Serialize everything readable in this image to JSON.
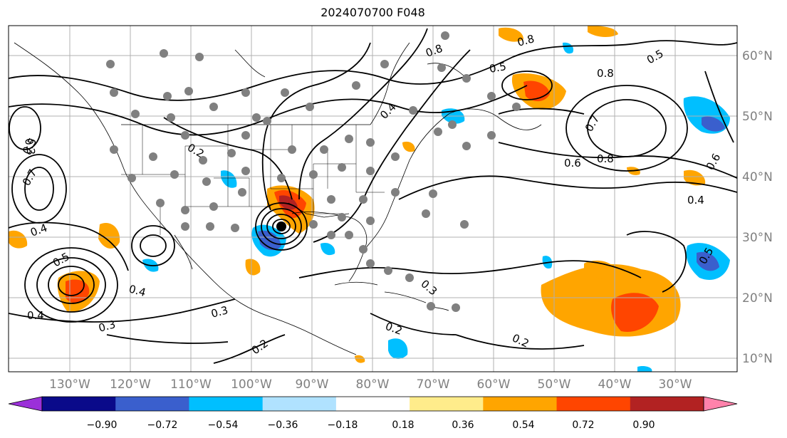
{
  "title": "2024070700 F048",
  "map": {
    "lat_labels": [
      "60°N",
      "50°N",
      "40°N",
      "30°N",
      "20°N",
      "10°N"
    ],
    "lon_labels": [
      "130°W",
      "120°W",
      "110°W",
      "100°W",
      "90°W",
      "80°W",
      "70°W",
      "60°W",
      "50°W",
      "40°W",
      "30°W"
    ],
    "contour_labels": [
      "0.8",
      "0.8",
      "0.5",
      "0.8",
      "0.5",
      "0.7",
      "0.8",
      "0.6",
      "0.4",
      "0.4",
      "0.3",
      "0.3",
      "0.2",
      "0.2",
      "0.2",
      "0.3",
      "0.5",
      "0.4",
      "0.7",
      "0.5",
      "0.4",
      "0.2",
      "0.3",
      "0.4",
      "0.5",
      "0.6"
    ]
  },
  "colorbar": {
    "ticks": [
      "−0.90",
      "−0.72",
      "−0.54",
      "−0.36",
      "−0.18",
      "0.18",
      "0.36",
      "0.54",
      "0.72",
      "0.90"
    ],
    "colors": [
      "#9b30d9",
      "#0a0a8a",
      "#3a5fcd",
      "#00bfff",
      "#b0e2ff",
      "#ffffff",
      "#ffec8b",
      "#ffa500",
      "#ff4500",
      "#b22222",
      "#ff82ab"
    ]
  }
}
